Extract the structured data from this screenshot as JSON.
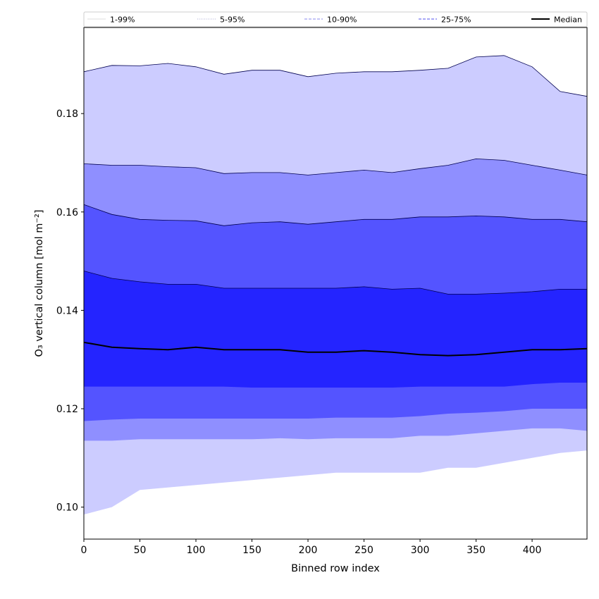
{
  "chart_data": {
    "type": "area",
    "xlabel": "Binned row index",
    "ylabel": "O₃ vertical column [mol m⁻²]",
    "xlim": [
      0,
      449
    ],
    "ylim": [
      0.0935,
      0.1975
    ],
    "xticks": [
      0,
      50,
      100,
      150,
      200,
      250,
      300,
      350,
      400
    ],
    "yticks": [
      0.1,
      0.12,
      0.14,
      0.16,
      0.18
    ],
    "ytick_labels": [
      "0.10",
      "0.12",
      "0.14",
      "0.16",
      "0.18"
    ],
    "grid": false,
    "legend_position": "top",
    "x": [
      0,
      25,
      50,
      75,
      100,
      125,
      150,
      175,
      200,
      225,
      250,
      275,
      300,
      325,
      350,
      375,
      400,
      425,
      449
    ],
    "bands": [
      {
        "name": "1-99%",
        "color": "#ccccff",
        "lower": [
          0.0985,
          0.1,
          0.1035,
          0.104,
          0.1045,
          0.105,
          0.1055,
          0.106,
          0.1065,
          0.107,
          0.107,
          0.107,
          0.107,
          0.108,
          0.108,
          0.109,
          0.11,
          0.111,
          0.1115
        ],
        "upper": [
          0.1885,
          0.1898,
          0.1897,
          0.1902,
          0.1895,
          0.188,
          0.1888,
          0.1888,
          0.1875,
          0.1882,
          0.1885,
          0.1885,
          0.1888,
          0.1892,
          0.1915,
          0.1918,
          0.1895,
          0.1845,
          0.1835
        ]
      },
      {
        "name": "5-95%",
        "color": "#8f8fff",
        "lower": [
          0.1135,
          0.1135,
          0.1138,
          0.1138,
          0.1138,
          0.1138,
          0.1138,
          0.114,
          0.1138,
          0.114,
          0.114,
          0.114,
          0.1145,
          0.1145,
          0.115,
          0.1155,
          0.116,
          0.116,
          0.1155
        ],
        "upper": [
          0.1698,
          0.1695,
          0.1695,
          0.1692,
          0.169,
          0.1678,
          0.168,
          0.168,
          0.1675,
          0.168,
          0.1685,
          0.168,
          0.1688,
          0.1695,
          0.1708,
          0.1705,
          0.1695,
          0.1685,
          0.1675
        ]
      },
      {
        "name": "10-90%",
        "color": "#5454ff",
        "lower": [
          0.1175,
          0.1178,
          0.118,
          0.118,
          0.118,
          0.118,
          0.118,
          0.118,
          0.118,
          0.1182,
          0.1182,
          0.1182,
          0.1185,
          0.119,
          0.1192,
          0.1195,
          0.12,
          0.12,
          0.12
        ],
        "upper": [
          0.1615,
          0.1595,
          0.1585,
          0.1583,
          0.1582,
          0.1572,
          0.1578,
          0.158,
          0.1575,
          0.158,
          0.1585,
          0.1585,
          0.159,
          0.159,
          0.1592,
          0.159,
          0.1585,
          0.1585,
          0.158
        ]
      },
      {
        "name": "25-75%",
        "color": "#2424ff",
        "lower": [
          0.1245,
          0.1245,
          0.1245,
          0.1245,
          0.1245,
          0.1245,
          0.1243,
          0.1243,
          0.1243,
          0.1243,
          0.1243,
          0.1243,
          0.1245,
          0.1245,
          0.1245,
          0.1245,
          0.125,
          0.1253,
          0.1253
        ],
        "upper": [
          0.148,
          0.1465,
          0.1458,
          0.1453,
          0.1453,
          0.1445,
          0.1445,
          0.1445,
          0.1445,
          0.1445,
          0.1448,
          0.1443,
          0.1445,
          0.1433,
          0.1433,
          0.1435,
          0.1438,
          0.1443,
          0.1443
        ]
      }
    ],
    "median": {
      "name": "Median",
      "color": "#000000",
      "values": [
        0.1335,
        0.1325,
        0.1322,
        0.132,
        0.1325,
        0.132,
        0.132,
        0.132,
        0.1315,
        0.1315,
        0.1318,
        0.1315,
        0.131,
        0.1308,
        0.131,
        0.1315,
        0.132,
        0.132,
        0.1322
      ]
    },
    "legend": [
      {
        "label": "1-99%",
        "color": "#dcdcdc",
        "style": "solid"
      },
      {
        "label": "5-95%",
        "color": "#b0b0d8",
        "style": "dotted"
      },
      {
        "label": "10-90%",
        "color": "#8888ee",
        "style": "dashed"
      },
      {
        "label": "25-75%",
        "color": "#5050ee",
        "style": "dashed"
      },
      {
        "label": "Median",
        "color": "#000000",
        "style": "solid"
      }
    ]
  }
}
